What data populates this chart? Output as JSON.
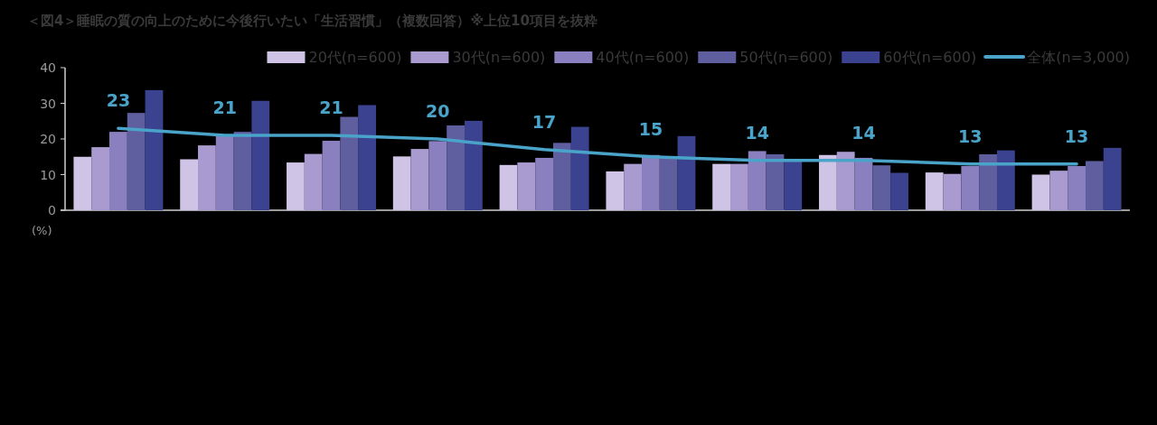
{
  "chart_data": {
    "type": "bar",
    "title": "＜図4＞睡眠の質の向上のために今後行いたい「生活習慣」（複数回答）※上位10項目を抜粋",
    "ylabel": "(%)",
    "categories": [
      null,
      null,
      null,
      null,
      null,
      null,
      null,
      null,
      null,
      null
    ],
    "ylim": [
      0,
      40
    ],
    "yticks": [
      0,
      10,
      20,
      30,
      40
    ],
    "grid": false,
    "legend": "top right",
    "series": [
      {
        "name": "20代(n=600)",
        "color": "#cfc3e6",
        "values": [
          15.0,
          14.3,
          13.4,
          15.1,
          12.7,
          10.9,
          13.0,
          15.5,
          10.6,
          10.0
        ]
      },
      {
        "name": "30代(n=600)",
        "color": "#a99bd0",
        "values": [
          17.7,
          18.2,
          15.8,
          17.2,
          13.4,
          13.0,
          13.0,
          16.4,
          10.2,
          11.1
        ]
      },
      {
        "name": "40代(n=600)",
        "color": "#8a7fbf",
        "values": [
          22.0,
          21.0,
          19.5,
          19.4,
          14.7,
          15.5,
          16.6,
          14.7,
          12.4,
          12.4
        ]
      },
      {
        "name": "50代(n=600)",
        "color": "#5f5fa0",
        "values": [
          27.3,
          22.0,
          26.2,
          23.8,
          18.9,
          15.0,
          15.7,
          12.6,
          15.7,
          13.8
        ]
      },
      {
        "name": "60代(n=600)",
        "color": "#3b4390",
        "values": [
          33.7,
          30.7,
          29.5,
          25.1,
          23.4,
          20.8,
          13.8,
          10.5,
          16.8,
          17.5
        ]
      },
      {
        "name": "全体(n=3,000)",
        "type": "line",
        "color": "#4aa3c8",
        "data_labels": true,
        "values": [
          23,
          21,
          21,
          20,
          17,
          15,
          14,
          14,
          13,
          13
        ]
      }
    ]
  }
}
